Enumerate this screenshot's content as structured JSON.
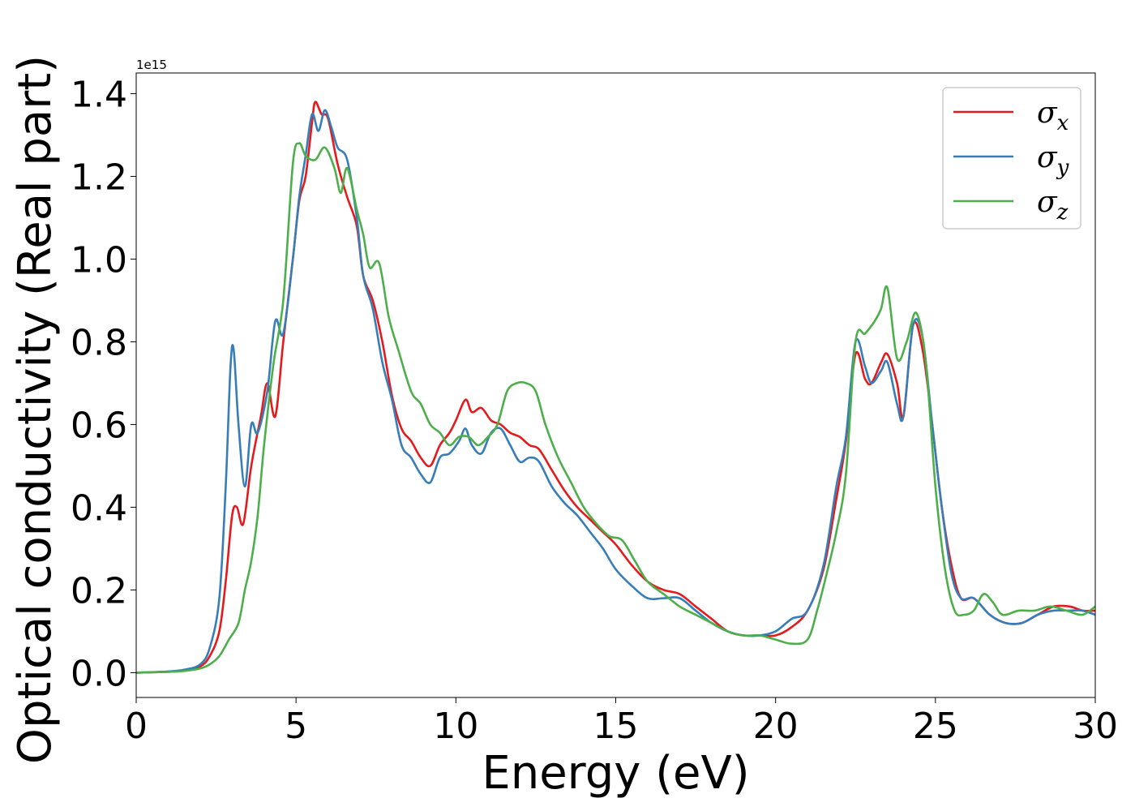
{
  "chart_data": {
    "type": "line",
    "title": "",
    "xlabel": "Energy (eV)",
    "ylabel": "Optical conductivity (Real part)",
    "y_offset_label": "1e15",
    "xlim": [
      0,
      30
    ],
    "ylim": [
      -0.06,
      1.45
    ],
    "x_ticks": [
      0,
      5,
      10,
      15,
      20,
      25,
      30
    ],
    "x_tick_labels": [
      "0",
      "5",
      "10",
      "15",
      "20",
      "25",
      "30"
    ],
    "y_ticks": [
      0.0,
      0.2,
      0.4,
      0.6,
      0.8,
      1.0,
      1.2,
      1.4
    ],
    "y_tick_labels": [
      "0.0",
      "0.2",
      "0.4",
      "0.6",
      "0.8",
      "1.0",
      "1.2",
      "1.4"
    ],
    "grid": false,
    "legend_position": "top-right",
    "series": [
      {
        "name": "σx",
        "symbol": "σ",
        "subscript": "x",
        "color": "#e41a1c",
        "x": [
          0,
          1,
          1.5,
          2,
          2.3,
          2.6,
          2.8,
          3.0,
          3.15,
          3.35,
          3.6,
          3.9,
          4.1,
          4.35,
          4.6,
          4.9,
          5.1,
          5.3,
          5.5,
          5.6,
          5.8,
          6.0,
          6.3,
          6.6,
          6.9,
          7.1,
          7.4,
          7.7,
          8.0,
          8.3,
          8.6,
          8.9,
          9.2,
          9.5,
          9.8,
          10.0,
          10.3,
          10.5,
          10.8,
          11.1,
          11.4,
          11.7,
          12.0,
          12.3,
          12.6,
          13.0,
          13.4,
          13.8,
          14.2,
          14.6,
          15.0,
          15.5,
          16.0,
          16.5,
          17.0,
          17.5,
          18.0,
          18.5,
          19.0,
          19.5,
          20.0,
          20.5,
          21.0,
          21.5,
          21.9,
          22.2,
          22.5,
          22.8,
          23.0,
          23.3,
          23.5,
          23.8,
          24.0,
          24.3,
          24.6,
          24.9,
          25.2,
          25.5,
          25.8,
          26.2,
          26.7,
          27.2,
          27.7,
          28.2,
          28.7,
          29.2,
          29.6,
          30.0
        ],
        "values": [
          0.0,
          0.002,
          0.005,
          0.015,
          0.04,
          0.1,
          0.22,
          0.38,
          0.4,
          0.36,
          0.5,
          0.62,
          0.7,
          0.62,
          0.8,
          1.0,
          1.14,
          1.2,
          1.33,
          1.38,
          1.35,
          1.34,
          1.23,
          1.15,
          1.08,
          0.96,
          0.9,
          0.8,
          0.67,
          0.59,
          0.56,
          0.52,
          0.5,
          0.55,
          0.58,
          0.61,
          0.66,
          0.63,
          0.64,
          0.61,
          0.6,
          0.58,
          0.57,
          0.55,
          0.54,
          0.49,
          0.44,
          0.4,
          0.37,
          0.34,
          0.31,
          0.26,
          0.22,
          0.2,
          0.19,
          0.16,
          0.13,
          0.1,
          0.09,
          0.09,
          0.09,
          0.11,
          0.15,
          0.25,
          0.42,
          0.56,
          0.77,
          0.71,
          0.7,
          0.75,
          0.77,
          0.7,
          0.62,
          0.84,
          0.78,
          0.6,
          0.4,
          0.26,
          0.18,
          0.18,
          0.14,
          0.12,
          0.12,
          0.14,
          0.16,
          0.16,
          0.15,
          0.15
        ]
      },
      {
        "name": "σy",
        "symbol": "σ",
        "subscript": "y",
        "color": "#377eb8",
        "x": [
          0,
          1,
          1.5,
          2,
          2.3,
          2.6,
          2.8,
          2.95,
          3.05,
          3.2,
          3.4,
          3.6,
          3.8,
          4.1,
          4.35,
          4.6,
          4.9,
          5.1,
          5.3,
          5.5,
          5.7,
          5.9,
          6.1,
          6.3,
          6.6,
          6.9,
          7.1,
          7.4,
          7.7,
          8.0,
          8.3,
          8.6,
          8.9,
          9.2,
          9.5,
          9.8,
          10.1,
          10.3,
          10.5,
          10.8,
          11.1,
          11.4,
          11.7,
          12.0,
          12.3,
          12.6,
          13.0,
          13.4,
          13.8,
          14.2,
          14.6,
          15.0,
          15.5,
          16.0,
          16.5,
          17.0,
          17.5,
          18.0,
          18.5,
          19.0,
          19.5,
          20.0,
          20.5,
          21.0,
          21.5,
          21.9,
          22.2,
          22.5,
          22.8,
          23.0,
          23.3,
          23.5,
          23.8,
          24.0,
          24.3,
          24.6,
          24.9,
          25.2,
          25.5,
          25.8,
          26.2,
          26.7,
          27.2,
          27.7,
          28.2,
          28.7,
          29.2,
          29.6,
          30.0
        ],
        "values": [
          0.0,
          0.003,
          0.007,
          0.02,
          0.06,
          0.18,
          0.45,
          0.74,
          0.78,
          0.6,
          0.45,
          0.6,
          0.58,
          0.68,
          0.85,
          0.82,
          1.0,
          1.15,
          1.25,
          1.35,
          1.31,
          1.36,
          1.32,
          1.27,
          1.24,
          1.1,
          0.96,
          0.88,
          0.75,
          0.66,
          0.55,
          0.52,
          0.48,
          0.46,
          0.52,
          0.53,
          0.56,
          0.59,
          0.55,
          0.53,
          0.58,
          0.59,
          0.55,
          0.51,
          0.52,
          0.51,
          0.45,
          0.41,
          0.38,
          0.34,
          0.3,
          0.25,
          0.21,
          0.18,
          0.18,
          0.18,
          0.15,
          0.12,
          0.1,
          0.09,
          0.09,
          0.1,
          0.13,
          0.15,
          0.26,
          0.45,
          0.57,
          0.8,
          0.74,
          0.7,
          0.73,
          0.75,
          0.65,
          0.62,
          0.84,
          0.81,
          0.6,
          0.4,
          0.24,
          0.18,
          0.18,
          0.14,
          0.12,
          0.12,
          0.14,
          0.15,
          0.15,
          0.15,
          0.14
        ]
      },
      {
        "name": "σz",
        "symbol": "σ",
        "subscript": "z",
        "color": "#4daf4a",
        "x": [
          0,
          1,
          1.5,
          2,
          2.3,
          2.6,
          2.9,
          3.2,
          3.4,
          3.6,
          3.8,
          4.0,
          4.3,
          4.6,
          4.9,
          5.1,
          5.3,
          5.6,
          5.9,
          6.2,
          6.4,
          6.6,
          6.9,
          7.1,
          7.3,
          7.6,
          7.9,
          8.2,
          8.6,
          8.9,
          9.2,
          9.5,
          9.8,
          10.1,
          10.4,
          10.7,
          11.0,
          11.3,
          11.6,
          11.9,
          12.2,
          12.5,
          12.8,
          13.2,
          13.6,
          14.0,
          14.4,
          14.8,
          15.2,
          15.6,
          16.0,
          16.5,
          17.0,
          17.5,
          18.0,
          18.5,
          19.0,
          19.5,
          20.0,
          20.5,
          21.0,
          21.3,
          21.6,
          21.9,
          22.2,
          22.5,
          22.8,
          23.1,
          23.3,
          23.5,
          23.8,
          24.1,
          24.4,
          24.7,
          25.0,
          25.3,
          25.6,
          25.9,
          26.2,
          26.5,
          26.8,
          27.1,
          27.6,
          28.1,
          28.6,
          29.1,
          29.6,
          30.0
        ],
        "values": [
          0.0,
          0.002,
          0.004,
          0.01,
          0.02,
          0.04,
          0.08,
          0.12,
          0.2,
          0.27,
          0.38,
          0.55,
          0.75,
          0.9,
          1.23,
          1.28,
          1.25,
          1.24,
          1.27,
          1.22,
          1.16,
          1.22,
          1.12,
          1.06,
          0.98,
          0.99,
          0.86,
          0.78,
          0.68,
          0.65,
          0.6,
          0.58,
          0.55,
          0.57,
          0.57,
          0.55,
          0.57,
          0.6,
          0.68,
          0.7,
          0.7,
          0.68,
          0.6,
          0.52,
          0.46,
          0.4,
          0.36,
          0.33,
          0.32,
          0.27,
          0.22,
          0.19,
          0.16,
          0.14,
          0.12,
          0.1,
          0.09,
          0.09,
          0.08,
          0.07,
          0.08,
          0.15,
          0.24,
          0.34,
          0.48,
          0.8,
          0.82,
          0.85,
          0.88,
          0.93,
          0.76,
          0.8,
          0.87,
          0.75,
          0.45,
          0.25,
          0.15,
          0.14,
          0.15,
          0.19,
          0.17,
          0.14,
          0.15,
          0.15,
          0.16,
          0.15,
          0.14,
          0.16
        ]
      }
    ]
  }
}
